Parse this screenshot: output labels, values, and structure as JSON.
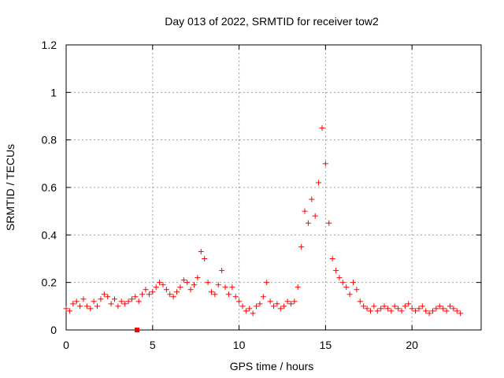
{
  "chart_data": {
    "type": "scatter",
    "title": "Day 013 of 2022, SRMTID for receiver tow2",
    "xlabel": "GPS time / hours",
    "ylabel": "SRMTID / TECUs",
    "xlim": [
      0,
      24
    ],
    "ylim": [
      0,
      1.2
    ],
    "xticks": [
      0,
      5,
      10,
      15,
      20
    ],
    "xtick_labels": [
      "0",
      "5",
      "10",
      "15",
      "20"
    ],
    "yticks": [
      0,
      0.2,
      0.4,
      0.6,
      0.8,
      1,
      1.2
    ],
    "ytick_labels": [
      "0",
      "0.2",
      "0.4",
      "0.6",
      "0.8",
      "1",
      "1.2"
    ],
    "grid": true,
    "marker": "plus",
    "color": "#ff0000",
    "outlier": {
      "x": 4.1,
      "y": 0.0
    },
    "series": [
      {
        "name": "SRMTID",
        "x": [
          0.0,
          0.2,
          0.4,
          0.6,
          0.8,
          1.0,
          1.2,
          1.4,
          1.6,
          1.8,
          2.0,
          2.2,
          2.4,
          2.6,
          2.8,
          3.0,
          3.2,
          3.4,
          3.6,
          3.8,
          4.0,
          4.2,
          4.4,
          4.6,
          4.8,
          5.0,
          5.2,
          5.4,
          5.6,
          5.8,
          6.0,
          6.2,
          6.4,
          6.6,
          6.8,
          7.0,
          7.2,
          7.4,
          7.6,
          7.8,
          8.0,
          8.2,
          8.4,
          8.6,
          8.8,
          9.0,
          9.2,
          9.4,
          9.6,
          9.8,
          10.0,
          10.2,
          10.4,
          10.6,
          10.8,
          11.0,
          11.2,
          11.4,
          11.6,
          11.8,
          12.0,
          12.2,
          12.4,
          12.6,
          12.8,
          13.0,
          13.2,
          13.4,
          13.6,
          13.8,
          14.0,
          14.2,
          14.4,
          14.6,
          14.8,
          15.0,
          15.2,
          15.4,
          15.6,
          15.8,
          16.0,
          16.2,
          16.4,
          16.6,
          16.8,
          17.0,
          17.2,
          17.4,
          17.6,
          17.8,
          18.0,
          18.2,
          18.4,
          18.6,
          18.8,
          19.0,
          19.2,
          19.4,
          19.6,
          19.8,
          20.0,
          20.2,
          20.4,
          20.6,
          20.8,
          21.0,
          21.2,
          21.4,
          21.6,
          21.8,
          22.0,
          22.2,
          22.4,
          22.6,
          22.8
        ],
        "y": [
          0.09,
          0.08,
          0.11,
          0.12,
          0.1,
          0.13,
          0.1,
          0.09,
          0.12,
          0.1,
          0.13,
          0.15,
          0.14,
          0.11,
          0.13,
          0.1,
          0.12,
          0.11,
          0.12,
          0.13,
          0.14,
          0.12,
          0.15,
          0.17,
          0.15,
          0.16,
          0.18,
          0.2,
          0.19,
          0.17,
          0.15,
          0.14,
          0.16,
          0.18,
          0.21,
          0.2,
          0.17,
          0.19,
          0.22,
          0.33,
          0.3,
          0.2,
          0.16,
          0.15,
          0.19,
          0.25,
          0.18,
          0.15,
          0.18,
          0.14,
          0.12,
          0.1,
          0.08,
          0.09,
          0.07,
          0.1,
          0.11,
          0.14,
          0.2,
          0.12,
          0.1,
          0.11,
          0.09,
          0.1,
          0.12,
          0.11,
          0.12,
          0.18,
          0.35,
          0.5,
          0.45,
          0.55,
          0.48,
          0.62,
          0.85,
          0.7,
          0.45,
          0.3,
          0.25,
          0.22,
          0.2,
          0.18,
          0.15,
          0.2,
          0.17,
          0.12,
          0.1,
          0.09,
          0.08,
          0.1,
          0.08,
          0.09,
          0.1,
          0.09,
          0.08,
          0.1,
          0.09,
          0.08,
          0.1,
          0.11,
          0.09,
          0.08,
          0.09,
          0.1,
          0.08,
          0.07,
          0.08,
          0.09,
          0.1,
          0.09,
          0.08,
          0.1,
          0.09,
          0.08,
          0.07
        ]
      }
    ]
  }
}
